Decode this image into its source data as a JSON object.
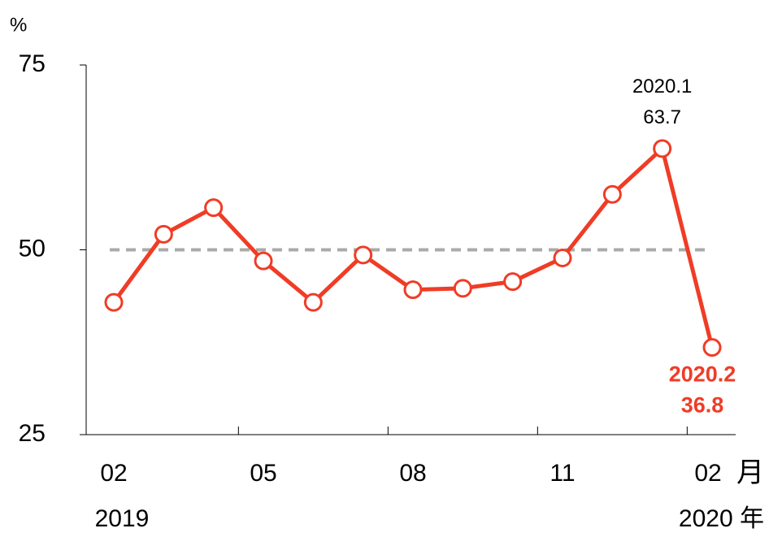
{
  "chart_data": {
    "type": "line",
    "y_unit": "%",
    "x_unit": "月",
    "year_labels": [
      "2019",
      "2020 年"
    ],
    "categories": [
      "02",
      null,
      null,
      "05",
      null,
      null,
      "08",
      null,
      null,
      "11",
      null,
      null,
      "02"
    ],
    "series": [
      {
        "color": "#f03c26",
        "values": [
          42.9,
          52.1,
          55.7,
          48.5,
          42.9,
          49.3,
          44.6,
          44.8,
          45.7,
          48.9,
          57.5,
          63.7,
          36.8
        ]
      }
    ],
    "annotations": [
      {
        "index": 11,
        "text": "2020.1"
      },
      {
        "index": 12,
        "text": "2020.2"
      }
    ],
    "hline": {
      "value": 50,
      "color": "#aaaaaa"
    },
    "ylim": [
      25,
      75
    ],
    "yticks": [
      25,
      50,
      75
    ]
  }
}
